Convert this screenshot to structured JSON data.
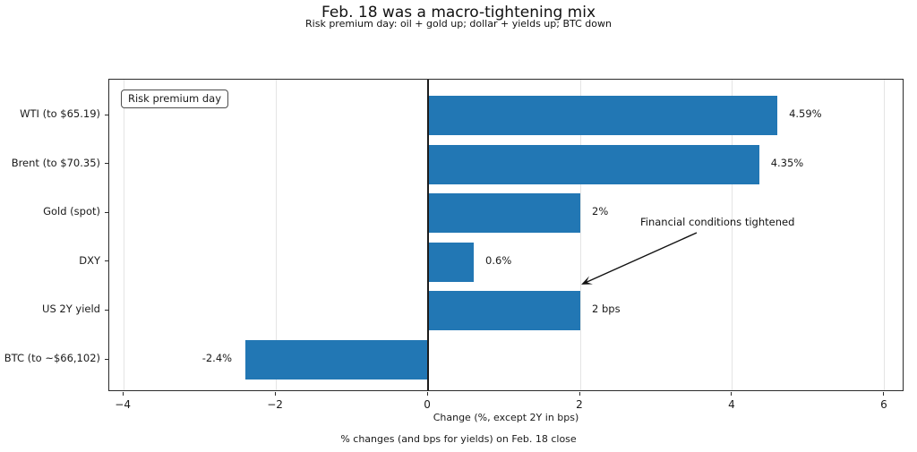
{
  "title": "Feb. 18 was a macro-tightening mix",
  "subtitle": "Risk premium day: oil + gold up; dollar + yields up; BTC down",
  "footer": "% changes (and bps for yields) on Feb. 18 close",
  "legend": {
    "label": "Risk premium day"
  },
  "annotation": {
    "text": "Financial conditions tightened"
  },
  "chart_data": {
    "type": "bar",
    "orientation": "horizontal",
    "title": "Feb. 18 was a macro-tightening mix",
    "subtitle": "Risk premium day: oil + gold up; dollar + yields up; BTC down",
    "categories": [
      "WTI (to $65.19)",
      "Brent (to $70.35)",
      "Gold (spot)",
      "DXY",
      "US 2Y yield",
      "BTC (to ~$66,102)"
    ],
    "values": [
      4.59,
      4.35,
      2,
      0.6,
      2,
      -2.4
    ],
    "value_labels": [
      "4.59%",
      "4.35%",
      "2%",
      "0.6%",
      "2 bps",
      "-2.4%"
    ],
    "xlabel": "Change (%, except 2Y in bps)",
    "xticks": [
      -4,
      -2,
      0,
      2,
      4,
      6
    ],
    "xtick_labels": [
      "−4",
      "−2",
      "0",
      "2",
      "4",
      "6"
    ],
    "xlim": [
      -4.19,
      6.26
    ],
    "bar_color": "#2277b4",
    "grid": true,
    "zero_line": true,
    "legend_label": "Risk premium day",
    "annotation_text": "Financial conditions tightened"
  }
}
